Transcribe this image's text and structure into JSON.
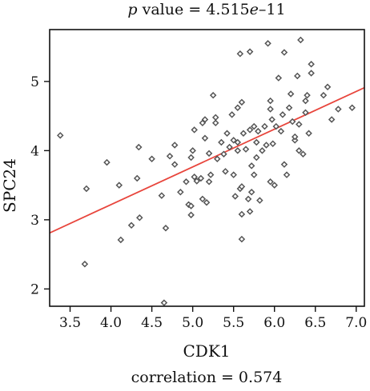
{
  "chart_data": {
    "type": "scatter",
    "title_var": "p",
    "title_rest": " value = 4.515",
    "title_e": "e",
    "title_exp": "–11",
    "caption": "correlation = 0.574",
    "xlabel": "CDK1",
    "ylabel": "SPC24",
    "xlim": [
      3.25,
      7.1
    ],
    "ylim": [
      1.75,
      5.75
    ],
    "xticks": [
      "3.5",
      "4.0",
      "4.5",
      "5.0",
      "5.5",
      "6.0",
      "6.5",
      "7.0"
    ],
    "yticks": [
      "2",
      "3",
      "4",
      "5"
    ],
    "grid": false,
    "point_color": "#555555",
    "line_color": "#e8453c",
    "regression": {
      "x": [
        3.25,
        7.1
      ],
      "y": [
        2.81,
        4.91
      ]
    },
    "points": [
      [
        3.38,
        4.22
      ],
      [
        3.68,
        2.36
      ],
      [
        3.7,
        3.45
      ],
      [
        3.95,
        3.83
      ],
      [
        4.1,
        3.5
      ],
      [
        4.12,
        2.71
      ],
      [
        4.25,
        2.92
      ],
      [
        4.32,
        3.6
      ],
      [
        4.34,
        4.05
      ],
      [
        4.35,
        3.03
      ],
      [
        4.5,
        3.88
      ],
      [
        4.62,
        3.35
      ],
      [
        4.65,
        1.8
      ],
      [
        4.67,
        2.88
      ],
      [
        4.72,
        3.92
      ],
      [
        4.78,
        3.8
      ],
      [
        4.78,
        4.08
      ],
      [
        4.85,
        3.4
      ],
      [
        4.92,
        3.55
      ],
      [
        4.95,
        3.22
      ],
      [
        4.98,
        3.07
      ],
      [
        4.98,
        3.2
      ],
      [
        4.98,
        3.9
      ],
      [
        5.0,
        4.0
      ],
      [
        5.02,
        3.62
      ],
      [
        5.02,
        4.3
      ],
      [
        5.05,
        3.56
      ],
      [
        5.1,
        3.6
      ],
      [
        5.12,
        4.4
      ],
      [
        5.12,
        3.3
      ],
      [
        5.15,
        4.45
      ],
      [
        5.15,
        4.18
      ],
      [
        5.17,
        3.25
      ],
      [
        5.2,
        3.96
      ],
      [
        5.2,
        3.55
      ],
      [
        5.22,
        3.65
      ],
      [
        5.25,
        4.8
      ],
      [
        5.28,
        4.4
      ],
      [
        5.28,
        4.48
      ],
      [
        5.3,
        3.88
      ],
      [
        5.35,
        4.12
      ],
      [
        5.38,
        3.95
      ],
      [
        5.4,
        3.7
      ],
      [
        5.42,
        4.25
      ],
      [
        5.45,
        4.05
      ],
      [
        5.48,
        4.52
      ],
      [
        5.5,
        4.15
      ],
      [
        5.5,
        3.65
      ],
      [
        5.52,
        3.34
      ],
      [
        5.55,
        4.62
      ],
      [
        5.55,
        4.12
      ],
      [
        5.55,
        4.0
      ],
      [
        5.58,
        5.4
      ],
      [
        5.58,
        3.45
      ],
      [
        5.6,
        4.7
      ],
      [
        5.6,
        3.48
      ],
      [
        5.6,
        3.08
      ],
      [
        5.6,
        2.72
      ],
      [
        5.62,
        4.25
      ],
      [
        5.65,
        4.02
      ],
      [
        5.68,
        3.3
      ],
      [
        5.7,
        5.43
      ],
      [
        5.7,
        4.3
      ],
      [
        5.7,
        3.12
      ],
      [
        5.72,
        3.78
      ],
      [
        5.72,
        3.4
      ],
      [
        5.75,
        4.35
      ],
      [
        5.75,
        3.65
      ],
      [
        5.78,
        4.12
      ],
      [
        5.78,
        3.9
      ],
      [
        5.8,
        4.28
      ],
      [
        5.82,
        3.28
      ],
      [
        5.85,
        4.0
      ],
      [
        5.88,
        4.35
      ],
      [
        5.9,
        4.08
      ],
      [
        5.92,
        5.55
      ],
      [
        5.95,
        4.72
      ],
      [
        5.95,
        4.6
      ],
      [
        5.95,
        3.55
      ],
      [
        5.97,
        4.45
      ],
      [
        5.98,
        4.1
      ],
      [
        6.0,
        3.5
      ],
      [
        6.02,
        4.35
      ],
      [
        6.05,
        5.05
      ],
      [
        6.08,
        4.28
      ],
      [
        6.1,
        4.52
      ],
      [
        6.12,
        5.42
      ],
      [
        6.12,
        3.8
      ],
      [
        6.15,
        3.65
      ],
      [
        6.18,
        4.62
      ],
      [
        6.2,
        4.82
      ],
      [
        6.22,
        4.42
      ],
      [
        6.25,
        4.15
      ],
      [
        6.25,
        4.2
      ],
      [
        6.28,
        5.08
      ],
      [
        6.3,
        4.38
      ],
      [
        6.3,
        4.0
      ],
      [
        6.32,
        5.6
      ],
      [
        6.35,
        3.95
      ],
      [
        6.38,
        4.72
      ],
      [
        6.38,
        4.55
      ],
      [
        6.4,
        4.8
      ],
      [
        6.42,
        4.25
      ],
      [
        6.45,
        5.25
      ],
      [
        6.45,
        5.12
      ],
      [
        6.6,
        4.8
      ],
      [
        6.65,
        4.92
      ],
      [
        6.7,
        4.45
      ],
      [
        6.78,
        4.6
      ],
      [
        6.95,
        4.62
      ]
    ]
  }
}
